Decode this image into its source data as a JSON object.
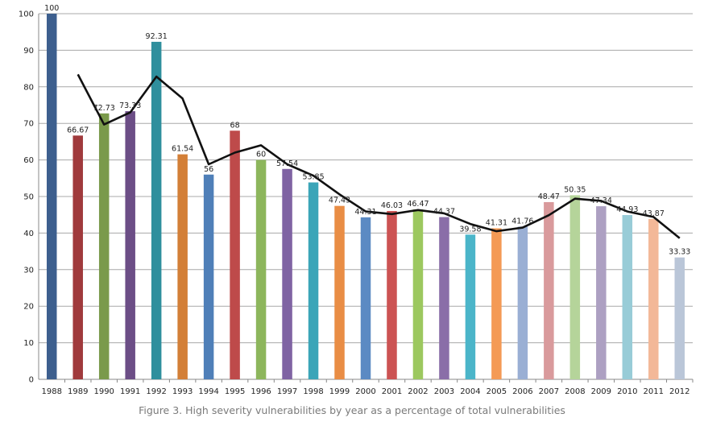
{
  "chart_data": {
    "type": "bar",
    "title": "",
    "caption": "Figure 3. High severity vulnerabilities by year as a percentage of total vulnerabilities",
    "xlabel": "",
    "ylabel": "",
    "ylim": [
      0,
      100
    ],
    "ytick_step": 10,
    "grid": true,
    "categories": [
      "1988",
      "1989",
      "1990",
      "1991",
      "1992",
      "1993",
      "1994",
      "1995",
      "1996",
      "1997",
      "1998",
      "1999",
      "2000",
      "2001",
      "2002",
      "2003",
      "2004",
      "2005",
      "2006",
      "2007",
      "2008",
      "2009",
      "2010",
      "2011",
      "2012"
    ],
    "values": [
      100,
      66.67,
      72.73,
      73.33,
      92.31,
      61.54,
      56,
      68,
      60,
      57.54,
      53.85,
      47.43,
      44.31,
      46.03,
      46.47,
      44.37,
      39.58,
      41.31,
      41.76,
      48.47,
      50.35,
      47.34,
      44.93,
      43.87,
      33.33
    ],
    "bar_colors": [
      "#3d5f8e",
      "#a03a3c",
      "#7a9a4b",
      "#6c4e86",
      "#2f8f9d",
      "#d37f37",
      "#4f7fb8",
      "#be4a4a",
      "#8db65c",
      "#7f63a3",
      "#3ba5b8",
      "#e98d45",
      "#5b8ac3",
      "#cc5353",
      "#9cc85f",
      "#8a6ea8",
      "#4bb5c9",
      "#f49a55",
      "#9aafd4",
      "#d99a9c",
      "#b5d49a",
      "#ada0c2",
      "#98ccd7",
      "#f3b898",
      "#bac6d8"
    ],
    "trend_line": {
      "name": "trend",
      "color": "#111111",
      "values": [
        null,
        83.4,
        69.7,
        73.0,
        82.8,
        76.8,
        58.8,
        62.0,
        64.0,
        58.8,
        55.7,
        50.6,
        45.9,
        45.2,
        46.3,
        45.4,
        42.5,
        40.5,
        41.5,
        44.9,
        49.4,
        48.8,
        45.9,
        44.4,
        38.6
      ]
    }
  }
}
